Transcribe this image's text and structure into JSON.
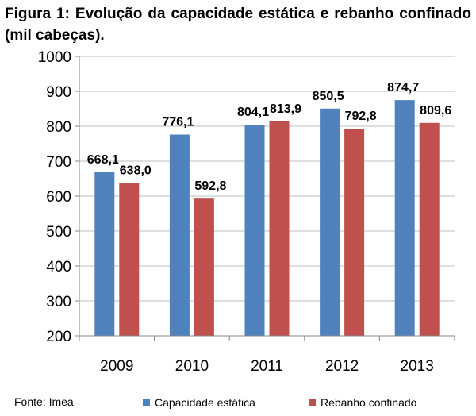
{
  "caption": "Figura 1: Evolução da capacidade estática e rebanho confinado (mil cabeças).",
  "source": "Fonte: Imea",
  "colors": {
    "series1": "#4F81BD",
    "series2": "#C0504D",
    "grid": "#BFBFBF",
    "axis": "#868686"
  },
  "chart_data": {
    "type": "bar",
    "title": "",
    "xlabel": "",
    "ylabel": "",
    "categories": [
      "2009",
      "2010",
      "2011",
      "2012",
      "2013"
    ],
    "series": [
      {
        "name": "Capacidade estática",
        "values": [
          668.1,
          776.1,
          804.1,
          850.5,
          874.7
        ],
        "labels": [
          "668,1",
          "776,1",
          "804,1",
          "850,5",
          "874,7"
        ]
      },
      {
        "name": "Rebanho confinado",
        "values": [
          638.0,
          592.8,
          813.9,
          792.8,
          809.6
        ],
        "labels": [
          "638,0",
          "592,8",
          "813,9",
          "792,8",
          "809,6"
        ]
      }
    ],
    "ylim": [
      200,
      1000
    ],
    "yticks": [
      200,
      300,
      400,
      500,
      600,
      700,
      800,
      900,
      1000
    ],
    "grid": true,
    "legend": "bottom"
  }
}
